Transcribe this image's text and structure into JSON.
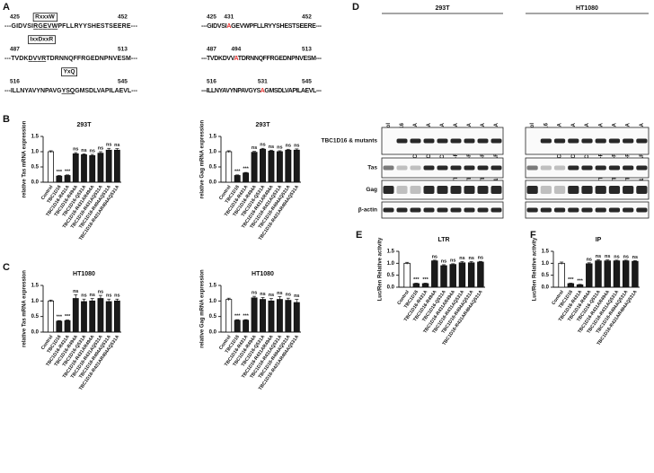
{
  "panel_labels": [
    "A",
    "B",
    "C",
    "D",
    "E",
    "F"
  ],
  "panel_a": {
    "rows": [
      {
        "motif": "RxxxW",
        "left": {
          "start": "425",
          "end": "452",
          "segments": [
            {
              "text": "---GIDVSI"
            },
            {
              "text": "RGEVW",
              "underline": true
            },
            {
              "text": "PFLLRYYSHESTSEERE---"
            }
          ]
        },
        "right": {
          "start": "425",
          "mark": "431",
          "end": "452",
          "segments": [
            {
              "text": "---GIDVSI"
            },
            {
              "text": "A",
              "color": "#e8312f"
            },
            {
              "text": "GEVWPFLLRYYSHESTSEERE---"
            }
          ]
        }
      },
      {
        "motif": "IxxDxxR",
        "left": {
          "start": "487",
          "end": "513",
          "segments": [
            {
              "text": "---TVDK"
            },
            {
              "text": "DVVR",
              "underline": true
            },
            {
              "text": "TDRNNQFFRGEDNPNVESM---"
            }
          ]
        },
        "right": {
          "start": "487",
          "mark": "494",
          "end": "513",
          "segments": [
            {
              "text": "---TVDKDVV"
            },
            {
              "text": "A",
              "color": "#e8312f"
            },
            {
              "text": "TDRNNQFFRGEDNPNVESM---"
            }
          ]
        }
      },
      {
        "motif": "YxQ",
        "left": {
          "start": "516",
          "end": "545",
          "segments": [
            {
              "text": "---ILLNYAVYNPAVG"
            },
            {
              "text": "YSQ",
              "underline": true
            },
            {
              "text": "GMSDLVAPILAEVL---"
            }
          ]
        },
        "right": {
          "start": "516",
          "mark": "531",
          "end": "545",
          "segments": [
            {
              "text": "---ILLNYAVYNPAVGYS"
            },
            {
              "text": "A",
              "color": "#e8312f"
            },
            {
              "text": "GMSDLVAPILAEVL---"
            }
          ]
        }
      }
    ]
  },
  "panel_d": {
    "groups": [
      {
        "cell_line": "293T",
        "lanes": [
          "Control",
          "TBC1D16",
          "TBC1D16-R431A",
          "TBC1D16-R494A",
          "TBC1D16-Q531A",
          "TBC1D16-R431AR494A",
          "TBC1D16-R431AQ531A",
          "TBC1D16-R494AQ531A",
          "TBC1D16-R431AR494AQ531A"
        ]
      },
      {
        "cell_line": "HT1080",
        "lanes": [
          "Control",
          "TBC1D16",
          "TBC1D16-R431A",
          "TBC1D16-R494A",
          "TBC1D16-Q531A",
          "TBC1D16-R431AR494A",
          "TBC1D16-R431AQ531A",
          "TBC1D16-R494AQ531A",
          "TBC1D16-R431AR494AQ531A"
        ]
      }
    ],
    "rows": [
      "TBC1D16 & mutants",
      "Tas",
      "Gag",
      "β-actin"
    ]
  },
  "chart_data": [
    {
      "type": "bar",
      "title": "293T",
      "y_label": "relative Tas mRNA expression",
      "categories": [
        "Control",
        "TBC1D16",
        "TBC1D16-R431A",
        "TBC1D16-R494A",
        "TBC1D16-Q531A",
        "TBC1D16-R431AR494A",
        "TBC1D16-R431AQ531A",
        "TBC1D16-R494AQ531A",
        "TBC1D16-R431AR494AQ531A"
      ],
      "values": [
        1.0,
        0.2,
        0.22,
        0.93,
        0.9,
        0.87,
        0.95,
        1.05,
        1.05
      ],
      "errors": [
        0.03,
        0.02,
        0.02,
        0.04,
        0.03,
        0.04,
        0.05,
        0.06,
        0.05
      ],
      "annotations": [
        null,
        "***",
        "***",
        "ns",
        "ns",
        "ns",
        "ns",
        "ns",
        "ns"
      ],
      "colors": [
        "#ffffff",
        "#1a1a1a",
        "#1a1a1a",
        "#1a1a1a",
        "#1a1a1a",
        "#1a1a1a",
        "#1a1a1a",
        "#1a1a1a",
        "#1a1a1a"
      ],
      "ylim": [
        0,
        1.5
      ],
      "yticks": [
        {
          "value": 0,
          "label": "0.0"
        },
        {
          "value": 0.5,
          "label": "0.5"
        },
        {
          "value": 1,
          "label": "1.0"
        },
        {
          "value": 1.5,
          "label": "1.5"
        }
      ]
    },
    {
      "type": "bar",
      "title": "293T",
      "y_label": "relative Gag mRNA expression",
      "categories": [
        "Control",
        "TBC1D16",
        "TBC1D16-R431A",
        "TBC1D16-R494A",
        "TBC1D16-Q531A",
        "TBC1D16-R431AR494A",
        "TBC1D16-R431AQ531A",
        "TBC1D16-R494AQ531A",
        "TBC1D16-R431AR494AQ531A"
      ],
      "values": [
        1.0,
        0.22,
        0.3,
        0.98,
        1.08,
        1.02,
        1.0,
        1.05,
        1.05
      ],
      "errors": [
        0.03,
        0.02,
        0.02,
        0.03,
        0.03,
        0.03,
        0.03,
        0.03,
        0.04
      ],
      "annotations": [
        null,
        "***",
        "***",
        "ns",
        "ns",
        "ns",
        "ns",
        "ns",
        "ns"
      ],
      "colors": [
        "#ffffff",
        "#1a1a1a",
        "#1a1a1a",
        "#1a1a1a",
        "#1a1a1a",
        "#1a1a1a",
        "#1a1a1a",
        "#1a1a1a",
        "#1a1a1a"
      ],
      "ylim": [
        0,
        1.5
      ],
      "yticks": [
        {
          "value": 0,
          "label": "0.0"
        },
        {
          "value": 0.5,
          "label": "0.5"
        },
        {
          "value": 1,
          "label": "1.0"
        },
        {
          "value": 1.5,
          "label": "1.5"
        }
      ]
    },
    {
      "type": "bar",
      "title": "HT1080",
      "y_label": "relative Tas mRNA expression",
      "categories": [
        "Control",
        "TBC1D16",
        "TBC1D16-R431A",
        "TBC1D16-R494A",
        "TBC1D16-Q531A",
        "TBC1D16-R431AR494A",
        "TBC1D16-R431AQ531A",
        "TBC1D16-R494AQ531A",
        "TBC1D16-R431AR494AQ531A"
      ],
      "values": [
        1.0,
        0.35,
        0.37,
        1.08,
        0.98,
        1.0,
        1.08,
        0.98,
        1.0
      ],
      "errors": [
        0.03,
        0.02,
        0.02,
        0.12,
        0.08,
        0.08,
        0.1,
        0.08,
        0.06
      ],
      "annotations": [
        null,
        "***",
        "***",
        "ns",
        "ns",
        "ns",
        "ns",
        "ns",
        "ns"
      ],
      "colors": [
        "#ffffff",
        "#1a1a1a",
        "#1a1a1a",
        "#1a1a1a",
        "#1a1a1a",
        "#1a1a1a",
        "#1a1a1a",
        "#1a1a1a",
        "#1a1a1a"
      ],
      "ylim": [
        0,
        1.5
      ],
      "yticks": [
        {
          "value": 0,
          "label": "0.0"
        },
        {
          "value": 0.5,
          "label": "0.5"
        },
        {
          "value": 1,
          "label": "1.0"
        },
        {
          "value": 1.5,
          "label": "1.5"
        }
      ]
    },
    {
      "type": "bar",
      "title": "HT1080",
      "y_label": "relative Gag mRNA expression",
      "categories": [
        "Control",
        "TBC1D16",
        "TBC1D16-R431A",
        "TBC1D16-R494A",
        "TBC1D16-Q531A",
        "TBC1D16-R431AR494A",
        "TBC1D16-R431AQ531A",
        "TBC1D16-R494AQ531A",
        "TBC1D16-R431AR494AQ531A"
      ],
      "values": [
        1.05,
        0.38,
        0.38,
        1.1,
        1.05,
        1.0,
        1.05,
        1.02,
        0.95
      ],
      "errors": [
        0.04,
        0.02,
        0.02,
        0.05,
        0.06,
        0.08,
        0.09,
        0.07,
        0.1
      ],
      "annotations": [
        null,
        "***",
        "***",
        "ns",
        "ns",
        "ns",
        "ns",
        "ns",
        "ns"
      ],
      "colors": [
        "#ffffff",
        "#1a1a1a",
        "#1a1a1a",
        "#1a1a1a",
        "#1a1a1a",
        "#1a1a1a",
        "#1a1a1a",
        "#1a1a1a",
        "#1a1a1a"
      ],
      "ylim": [
        0,
        1.5
      ],
      "yticks": [
        {
          "value": 0,
          "label": "0.0"
        },
        {
          "value": 0.5,
          "label": "0.5"
        },
        {
          "value": 1,
          "label": "1.0"
        },
        {
          "value": 1.5,
          "label": "1.5"
        }
      ]
    },
    {
      "type": "bar",
      "title": "LTR",
      "y_label": "Luc/Ren Relative activity",
      "categories": [
        "Control",
        "TBC1D16",
        "TBC1D16-R431A",
        "TBC1D16-R494A",
        "TBC1D16-Q531A",
        "TBC1D16-R431AR494A",
        "TBC1D16-R431AQ531A",
        "TBC1D16-R494AQ531A",
        "TBC1D16-R431AR494AQ531A"
      ],
      "values": [
        1.0,
        0.15,
        0.15,
        1.1,
        0.9,
        0.95,
        1.02,
        1.02,
        1.05
      ],
      "errors": [
        0.04,
        0.02,
        0.02,
        0.03,
        0.04,
        0.03,
        0.05,
        0.05,
        0.03
      ],
      "annotations": [
        null,
        "***",
        "***",
        "ns",
        "ns",
        "ns",
        "ns",
        "ns",
        "ns"
      ],
      "colors": [
        "#ffffff",
        "#1a1a1a",
        "#1a1a1a",
        "#1a1a1a",
        "#1a1a1a",
        "#1a1a1a",
        "#1a1a1a",
        "#1a1a1a",
        "#1a1a1a"
      ],
      "ylim": [
        0,
        1.5
      ],
      "yticks": [
        {
          "value": 0,
          "label": "0.0"
        },
        {
          "value": 0.5,
          "label": "0.5"
        },
        {
          "value": 1,
          "label": "1.0"
        },
        {
          "value": 1.5,
          "label": "1.5"
        }
      ]
    },
    {
      "type": "bar",
      "title": "IP",
      "y_label": "Luc/Ren Relative activity",
      "categories": [
        "Control",
        "TBC1D16",
        "TBC1D16-R431A",
        "TBC1D16-R494A",
        "TBC1D16-Q531A",
        "TBC1D16-R431AR494A",
        "TBC1D16-R431AQ531A",
        "TBC1D16-R494AQ531A",
        "TBC1D16-R431AR494AQ531A"
      ],
      "values": [
        1.0,
        0.15,
        0.1,
        0.98,
        1.1,
        1.1,
        1.1,
        1.1,
        1.08
      ],
      "errors": [
        0.05,
        0.02,
        0.02,
        0.04,
        0.05,
        0.04,
        0.03,
        0.03,
        0.03
      ],
      "annotations": [
        null,
        "***",
        "***",
        "ns",
        "ns",
        "ns",
        "ns",
        "ns",
        "ns"
      ],
      "colors": [
        "#ffffff",
        "#1a1a1a",
        "#1a1a1a",
        "#1a1a1a",
        "#1a1a1a",
        "#1a1a1a",
        "#1a1a1a",
        "#1a1a1a",
        "#1a1a1a"
      ],
      "ylim": [
        0,
        1.5
      ],
      "yticks": [
        {
          "value": 0,
          "label": "0.0"
        },
        {
          "value": 0.5,
          "label": "0.5"
        },
        {
          "value": 1,
          "label": "1.0"
        },
        {
          "value": 1.5,
          "label": "1.5"
        }
      ]
    }
  ]
}
